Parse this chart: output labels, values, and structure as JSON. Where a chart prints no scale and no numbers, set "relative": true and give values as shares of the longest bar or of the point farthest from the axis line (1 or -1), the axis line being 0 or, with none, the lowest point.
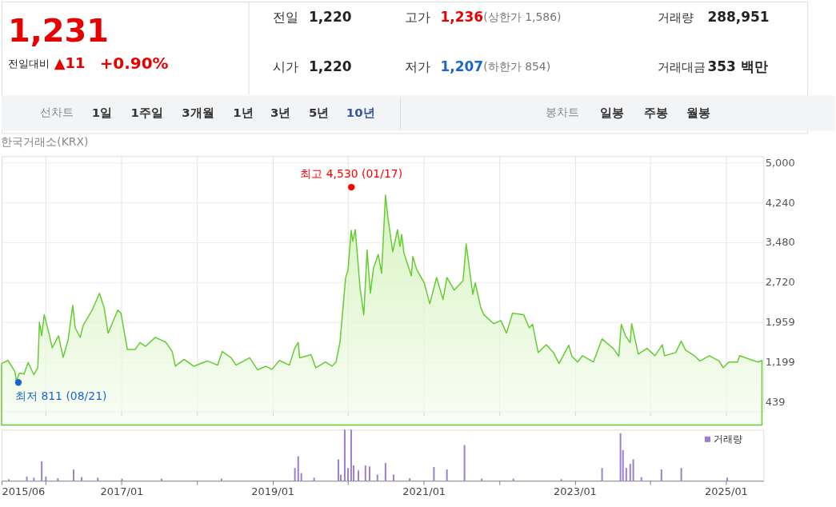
{
  "chart_data": [
    {
      "type": "other",
      "annotations": [
        "1,231",
        "전일대비",
        "▲11",
        "+0.90%",
        "전일",
        "1,220",
        "고가",
        "1,236",
        "(상한가 1,586)",
        "거래량",
        "288,951",
        "시가",
        "1,220",
        "저가",
        "1,207",
        "(하한가 854)",
        "거래대금",
        "353 백만",
        "선차트",
        "1일",
        "1주일",
        "3개월",
        "1년",
        "3년",
        "5년",
        "10년",
        "봉차트",
        "일봉",
        "주봉",
        "월봉"
      ]
    },
    {
      "type": "area",
      "grid": true,
      "tick_labels": "y",
      "legend": false,
      "xlim": [
        "2015-06-01",
        "2025-07-01"
      ],
      "xticks": [
        {
          "value": "2016-01-01",
          "label": null
        },
        {
          "value": "2017-01-01",
          "label": null
        },
        {
          "value": "2018-01-01",
          "label": null
        },
        {
          "value": "2019-01-01",
          "label": null
        },
        {
          "value": "2020-01-01",
          "label": null
        },
        {
          "value": "2021-01-01",
          "label": null
        },
        {
          "value": "2022-01-01",
          "label": null
        },
        {
          "value": "2023-01-01",
          "label": null
        },
        {
          "value": "2024-01-01",
          "label": null
        },
        {
          "value": "2025-01-01",
          "label": null
        }
      ],
      "ylim": [
        260,
        5120
      ],
      "yticks": [
        439,
        {
          "value": 1199,
          "label": "1,199"
        },
        {
          "value": 1959,
          "label": "1,959"
        },
        {
          "value": 2720,
          "label": "2,720"
        },
        {
          "value": 3480,
          "label": "3,480"
        },
        {
          "value": 4240,
          "label": "4,240"
        },
        {
          "value": 5000,
          "label": "5,000"
        }
      ],
      "annotations": [
        "한국거래소(KRX)",
        {
          "text": "최고 4,530 (01/17)",
          "x": "2020-01-17",
          "y": 4530
        },
        {
          "text": "최저 811 (08/21)",
          "x": "2015-08-21",
          "y": 811
        }
      ],
      "series": [
        {
          "type": "area",
          "color": "#66cc33",
          "x": [
            "2015-06-01",
            "2015-07-02",
            "2015-08-04",
            "2015-08-12",
            "2015-08-26",
            "2015-09-18",
            "2015-10-07",
            "2015-11-04",
            "2015-11-23",
            "2015-12-01",
            "2015-12-12",
            "2015-12-24",
            "2016-01-12",
            "2016-02-01",
            "2016-03-02",
            "2016-03-25",
            "2016-04-18",
            "2016-05-10",
            "2016-05-22",
            "2016-06-15",
            "2016-06-30",
            "2016-08-12",
            "2016-09-16",
            "2016-10-09",
            "2016-10-28",
            "2016-11-13",
            "2016-12-14",
            "2016-12-29",
            "2017-01-29",
            "2017-03-08",
            "2017-03-31",
            "2017-04-27",
            "2017-06-13",
            "2017-08-02",
            "2017-09-03",
            "2017-09-18",
            "2017-10-30",
            "2017-12-16",
            "2018-02-20",
            "2018-04-10",
            "2018-05-03",
            "2018-06-15",
            "2018-07-08",
            "2018-09-12",
            "2018-10-21",
            "2018-11-29",
            "2018-12-29",
            "2019-02-03",
            "2019-03-23",
            "2019-04-19",
            "2019-05-05",
            "2019-05-12",
            "2019-07-06",
            "2019-07-29",
            "2019-09-14",
            "2019-10-15",
            "2019-11-04",
            "2019-11-23",
            "2019-12-08",
            "2019-12-20",
            "2020-01-01",
            "2020-01-16",
            "2020-01-24",
            "2020-02-05",
            "2020-02-28",
            "2020-03-17",
            "2020-04-02",
            "2020-04-18",
            "2020-05-03",
            "2020-05-26",
            "2020-06-11",
            "2020-06-30",
            "2020-07-12",
            "2020-08-04",
            "2020-08-27",
            "2020-09-08",
            "2020-09-16",
            "2020-09-27",
            "2020-11-02",
            "2020-11-09",
            "2020-11-28",
            "2021-01-03",
            "2021-01-30",
            "2021-03-04",
            "2021-04-04",
            "2021-04-23",
            "2021-05-28",
            "2021-07-10",
            "2021-07-25",
            "2021-08-26",
            "2021-09-07",
            "2021-10-04",
            "2021-10-19",
            "2021-12-05",
            "2022-01-09",
            "2022-02-05",
            "2022-03-06",
            "2022-04-29",
            "2022-05-26",
            "2022-06-11",
            "2022-07-08",
            "2022-08-16",
            "2022-09-20",
            "2022-10-17",
            "2022-12-03",
            "2022-12-18",
            "2023-01-15",
            "2023-02-07",
            "2023-04-01",
            "2023-05-13",
            "2023-07-06",
            "2023-08-02",
            "2023-08-14",
            "2023-09-03",
            "2023-09-26",
            "2023-10-03",
            "2023-11-04",
            "2023-12-16",
            "2024-01-24",
            "2024-02-28",
            "2024-03-10",
            "2024-05-03",
            "2024-05-30",
            "2024-06-19",
            "2024-08-01",
            "2024-08-28",
            "2024-10-13",
            "2024-11-29",
            "2024-12-18",
            "2025-01-15",
            "2025-02-26",
            "2025-03-08",
            "2025-04-28",
            "2025-06-05",
            "2025-06-24"
          ],
          "values": [
            1170,
            1230,
            1020,
            840,
            990,
            970,
            1190,
            960,
            1090,
            1960,
            1700,
            2100,
            1810,
            1470,
            1700,
            1290,
            1630,
            2280,
            1850,
            1670,
            1900,
            2190,
            2510,
            2230,
            1750,
            1900,
            2190,
            2130,
            1440,
            1440,
            1570,
            1500,
            1670,
            1580,
            1400,
            1120,
            1250,
            1120,
            1220,
            1140,
            1400,
            1280,
            1140,
            1280,
            1050,
            1120,
            1060,
            1230,
            1140,
            1470,
            1570,
            1280,
            1340,
            1090,
            1200,
            1120,
            1200,
            1580,
            2260,
            2800,
            2960,
            3710,
            3500,
            3720,
            2610,
            2100,
            3330,
            2510,
            2990,
            3250,
            2890,
            4380,
            3940,
            3300,
            3720,
            3400,
            3630,
            3280,
            2840,
            3210,
            2960,
            2710,
            2310,
            2810,
            2390,
            2810,
            2570,
            2750,
            3450,
            2490,
            2710,
            2230,
            2100,
            1930,
            1990,
            1750,
            2130,
            2100,
            1850,
            1920,
            1380,
            1530,
            1380,
            1170,
            1520,
            1310,
            1200,
            1320,
            1200,
            1640,
            1460,
            1310,
            1920,
            1700,
            1570,
            1930,
            1350,
            1460,
            1320,
            1530,
            1320,
            1380,
            1600,
            1430,
            1320,
            1220,
            1320,
            1220,
            1090,
            1200,
            1200,
            1320,
            1250,
            1200,
            1230
          ]
        },
        {
          "type": "scatter",
          "color": "#ff0000",
          "x": [
            "2020-01-17"
          ],
          "values": [
            4530
          ]
        },
        {
          "type": "scatter",
          "color": "#1a66cc",
          "x": [
            "2015-08-21"
          ],
          "values": [
            811
          ]
        }
      ]
    },
    {
      "type": "bar",
      "relative": true,
      "tick_labels": "x",
      "legend": "top right",
      "xlim": [
        "2015-06-01",
        "2025-07-01"
      ],
      "xticks": [
        {
          "value": "2015-06-01",
          "label": "2015/06"
        },
        {
          "value": "2016-01-01",
          "label": null
        },
        {
          "value": "2017-01-01",
          "label": "2017/01"
        },
        {
          "value": "2018-01-01",
          "label": null
        },
        {
          "value": "2019-01-01",
          "label": "2019/01"
        },
        {
          "value": "2020-01-01",
          "label": null
        },
        {
          "value": "2021-01-01",
          "label": "2021/01"
        },
        {
          "value": "2022-01-01",
          "label": null
        },
        {
          "value": "2023-01-01",
          "label": "2023/01"
        },
        {
          "value": "2024-01-01",
          "label": null
        },
        {
          "value": "2025-01-01",
          "label": "2025/01"
        }
      ],
      "series": [
        {
          "name": "거래량",
          "color": "#9b7fd0",
          "x": [
            "2015-07-06",
            "2015-10-01",
            "2015-11-04",
            "2015-12-12",
            "2016-01-01",
            "2016-02-28",
            "2016-05-14",
            "2016-06-22",
            "2016-09-08",
            "2017-01-03",
            "2017-07-13",
            "2018-04-29",
            "2019-04-19",
            "2019-05-05",
            "2019-05-20",
            "2019-07-21",
            "2019-11-15",
            "2019-11-27",
            "2019-12-16",
            "2020-01-01",
            "2020-01-16",
            "2020-01-28",
            "2020-02-20",
            "2020-03-25",
            "2020-04-14",
            "2020-05-22",
            "2020-06-30",
            "2020-08-08",
            "2020-10-25",
            "2021-02-19",
            "2021-04-23",
            "2021-07-17",
            "2021-10-08",
            "2022-03-10",
            "2022-10-28",
            "2023-05-13",
            "2023-08-10",
            "2023-08-22",
            "2023-09-07",
            "2023-09-26",
            "2023-10-11",
            "2023-11-19",
            "2024-02-24",
            "2024-05-30",
            "2025-01-07"
          ],
          "values": [
            0.03,
            0.08,
            0.06,
            0.38,
            0.08,
            0.05,
            0.22,
            0.07,
            0.06,
            0.04,
            0.04,
            0.04,
            0.25,
            0.48,
            0.15,
            0.06,
            0.42,
            0.12,
            1.0,
            0.25,
            1.0,
            0.3,
            0.2,
            0.3,
            0.28,
            0.12,
            0.35,
            0.12,
            0.05,
            0.27,
            0.22,
            0.7,
            0.04,
            0.04,
            0.03,
            0.25,
            0.93,
            0.6,
            0.25,
            0.33,
            0.42,
            0.07,
            0.22,
            0.25,
            0.06
          ]
        }
      ]
    }
  ]
}
